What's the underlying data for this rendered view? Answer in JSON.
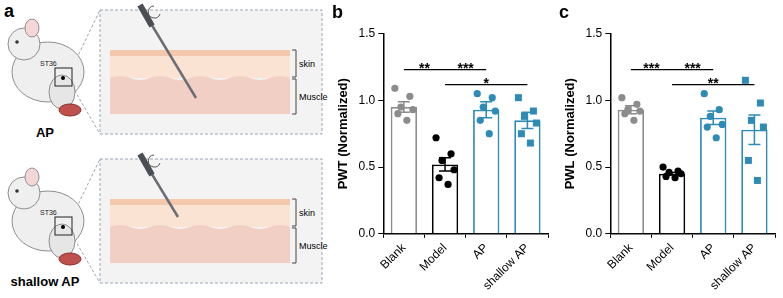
{
  "diagram": {
    "label": "a",
    "panels": [
      {
        "label": "AP",
        "site": "ST36",
        "layers": [
          "skin",
          "Muscle"
        ]
      },
      {
        "label": "shallow AP",
        "site": "ST36",
        "layers": [
          "skin",
          "Muscle"
        ]
      }
    ]
  },
  "chart_data": [
    {
      "type": "bar",
      "title": "b",
      "y_label": "PWT (Normalized)",
      "categories": [
        "Blank",
        "Model",
        "AP",
        "shallow AP"
      ],
      "values": [
        0.95,
        0.52,
        0.93,
        0.85
      ],
      "errors": [
        0.04,
        0.05,
        0.06,
        0.06
      ],
      "colors": [
        "#8c8c8c",
        "#000000",
        "#2e8bb5",
        "#2e8bb5"
      ],
      "points": [
        {
          "values": [
            1.09,
            1.03,
            0.95,
            0.93,
            0.9,
            0.85
          ],
          "marker": "circle"
        },
        {
          "values": [
            0.72,
            0.6,
            0.55,
            0.48,
            0.42,
            0.37
          ],
          "marker": "circle"
        },
        {
          "values": [
            1.05,
            1.02,
            0.95,
            0.92,
            0.85,
            0.75
          ],
          "marker": "circle"
        },
        {
          "values": [
            1.02,
            0.92,
            0.88,
            0.83,
            0.75,
            0.68
          ],
          "marker": "square"
        }
      ],
      "ylim": [
        0,
        1.5
      ],
      "yticks": [
        {
          "value": 0,
          "label": "0.0"
        },
        {
          "value": 0.5,
          "label": "0.5"
        },
        {
          "value": 1,
          "label": "1.0"
        },
        {
          "value": 1.5,
          "label": "1.5"
        }
      ],
      "grid": false,
      "annotations": [
        {
          "from": "Blank",
          "to": "Model",
          "text": "**"
        },
        {
          "from": "Model",
          "to": "AP",
          "text": "***"
        },
        {
          "from": "Model",
          "to": "shallow AP",
          "text": "*"
        }
      ]
    },
    {
      "type": "bar",
      "title": "c",
      "y_label": "PWL (Normalized)",
      "categories": [
        "Blank",
        "Model",
        "AP",
        "shallow AP"
      ],
      "values": [
        0.93,
        0.45,
        0.87,
        0.78
      ],
      "errors": [
        0.03,
        0.01,
        0.05,
        0.11
      ],
      "colors": [
        "#8c8c8c",
        "#000000",
        "#2e8bb5",
        "#2e8bb5"
      ],
      "points": [
        {
          "values": [
            1.02,
            0.97,
            0.93,
            0.92,
            0.9,
            0.85
          ],
          "marker": "circle"
        },
        {
          "values": [
            0.5,
            0.47,
            0.46,
            0.45,
            0.43,
            0.42
          ],
          "marker": "circle"
        },
        {
          "values": [
            1.05,
            0.93,
            0.88,
            0.82,
            0.8,
            0.72
          ],
          "marker": "circle"
        },
        {
          "values": [
            1.15,
            0.98,
            0.85,
            0.8,
            0.55,
            0.4
          ],
          "marker": "square"
        }
      ],
      "ylim": [
        0,
        1.5
      ],
      "yticks": [
        {
          "value": 0,
          "label": "0.0"
        },
        {
          "value": 0.5,
          "label": "0.5"
        },
        {
          "value": 1,
          "label": "1.0"
        },
        {
          "value": 1.5,
          "label": "1.5"
        }
      ],
      "grid": false,
      "annotations": [
        {
          "from": "Blank",
          "to": "Model",
          "text": "***"
        },
        {
          "from": "Model",
          "to": "AP",
          "text": "***"
        },
        {
          "from": "Model",
          "to": "shallow AP",
          "text": "**"
        }
      ]
    }
  ]
}
